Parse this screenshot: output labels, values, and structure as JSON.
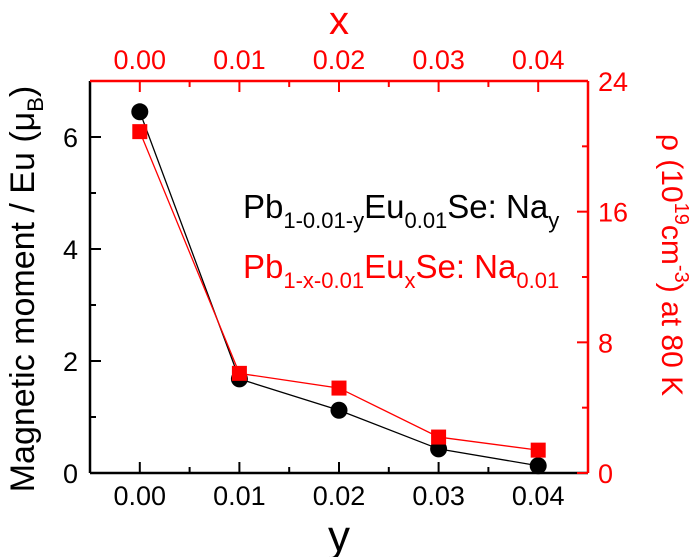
{
  "chart_data": {
    "type": "scatter",
    "title": "",
    "x_bottom": {
      "label": "y",
      "lim": [
        -0.005,
        0.045
      ],
      "ticks": [
        0.0,
        0.01,
        0.02,
        0.03,
        0.04
      ],
      "tick_labels": [
        "0.00",
        "0.01",
        "0.02",
        "0.03",
        "0.04"
      ],
      "color": "#000000"
    },
    "x_top": {
      "label": "x",
      "lim": [
        -0.005,
        0.045
      ],
      "ticks": [
        0.0,
        0.01,
        0.02,
        0.03,
        0.04
      ],
      "tick_labels": [
        "0.00",
        "0.01",
        "0.02",
        "0.03",
        "0.04"
      ],
      "color": "#ff0000"
    },
    "y_left": {
      "label": "Magnetic moment / Eu (μ",
      "label_sub": "B",
      "label_end": ")",
      "lim": [
        0,
        7
      ],
      "ticks": [
        0,
        2,
        4,
        6
      ],
      "tick_labels": [
        "0",
        "2",
        "4",
        "6"
      ],
      "color": "#000000"
    },
    "y_right": {
      "label_parts": [
        "ρ  (10",
        "19",
        "cm",
        "-3",
        ") at 80 K"
      ],
      "lim": [
        0,
        24
      ],
      "ticks": [
        0,
        8,
        16,
        24
      ],
      "tick_labels": [
        "0",
        "8",
        "16",
        "24"
      ],
      "color": "#ff0000"
    },
    "series": [
      {
        "axis": "left",
        "marker": "circle",
        "color": "#000000",
        "x": [
          0.0,
          0.01,
          0.02,
          0.03,
          0.04
        ],
        "y": [
          6.45,
          1.68,
          1.12,
          0.43,
          0.13
        ]
      },
      {
        "axis": "right",
        "marker": "square",
        "color": "#ff0000",
        "x": [
          0.0,
          0.01,
          0.02,
          0.03,
          0.04
        ],
        "y": [
          20.9,
          6.1,
          5.2,
          2.2,
          1.4
        ]
      }
    ],
    "legend": {
      "placement": "center-right",
      "entries": [
        {
          "color": "#000000",
          "parts": [
            {
              "t": "Pb",
              "sub": false
            },
            {
              "t": "1-0.01-y",
              "sub": true
            },
            {
              "t": "Eu",
              "sub": false
            },
            {
              "t": "0.01",
              "sub": true
            },
            {
              "t": "Se: Na",
              "sub": false
            },
            {
              "t": "y",
              "sub": true
            }
          ]
        },
        {
          "color": "#ff0000",
          "parts": [
            {
              "t": "Pb",
              "sub": false
            },
            {
              "t": "1-x-0.01",
              "sub": true
            },
            {
              "t": "Eu",
              "sub": false
            },
            {
              "t": "x",
              "sub": true
            },
            {
              "t": "Se: Na",
              "sub": false
            },
            {
              "t": "0.01",
              "sub": true
            }
          ]
        }
      ]
    },
    "grid": false
  }
}
